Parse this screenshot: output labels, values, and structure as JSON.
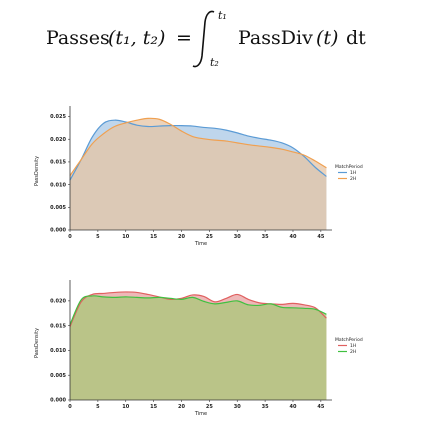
{
  "formula": {
    "lhs_name": "Passes",
    "lhs_args": "(t₁, t₂)",
    "equals": "=",
    "upper": "t₁",
    "lower": "t₂",
    "integrand": "PassDiv",
    "integrand_arg": "(t)",
    "differential": "dt"
  },
  "chart_data": [
    {
      "type": "area",
      "xlabel": "Time",
      "ylabel": "PassDensity",
      "xlim": [
        0,
        47
      ],
      "ylim": [
        0,
        0.026
      ],
      "xticks": [
        0,
        5,
        10,
        15,
        20,
        25,
        30,
        35,
        40,
        45
      ],
      "yticks": [
        0.0,
        0.005,
        0.01,
        0.015,
        0.02,
        0.025
      ],
      "ytick_labels": [
        "0.000",
        "0.005",
        "0.010",
        "0.015",
        "0.020",
        "0.025"
      ],
      "legend": {
        "title": "MatchPeriod",
        "position": "right"
      },
      "x": [
        0,
        2,
        4,
        6,
        8,
        10,
        12,
        14,
        16,
        18,
        20,
        22,
        24,
        26,
        28,
        30,
        32,
        34,
        36,
        38,
        40,
        42,
        44,
        46
      ],
      "series": [
        {
          "name": "1H",
          "color": "#5b9bd5",
          "fill": "#a9c8e6",
          "values": [
            0.011,
            0.0155,
            0.0205,
            0.0235,
            0.0242,
            0.0238,
            0.0231,
            0.0228,
            0.0229,
            0.023,
            0.023,
            0.0229,
            0.0226,
            0.0224,
            0.022,
            0.0214,
            0.0207,
            0.0202,
            0.0198,
            0.0192,
            0.0181,
            0.0162,
            0.0138,
            0.0118
          ]
        },
        {
          "name": "2H",
          "color": "#f0a050",
          "fill": "#e6c4a4",
          "values": [
            0.012,
            0.0155,
            0.019,
            0.0212,
            0.0228,
            0.0236,
            0.0242,
            0.0246,
            0.0244,
            0.0233,
            0.0218,
            0.0206,
            0.0201,
            0.0198,
            0.0196,
            0.0192,
            0.0188,
            0.0185,
            0.0182,
            0.0178,
            0.0172,
            0.0165,
            0.0152,
            0.0137
          ]
        }
      ]
    },
    {
      "type": "area",
      "xlabel": "Time",
      "ylabel": "PassDensity",
      "xlim": [
        0,
        47
      ],
      "ylim": [
        0,
        0.023
      ],
      "xticks": [
        0,
        5,
        10,
        15,
        20,
        25,
        30,
        35,
        40,
        45
      ],
      "yticks": [
        0.0,
        0.005,
        0.01,
        0.015,
        0.02
      ],
      "ytick_labels": [
        "0.000",
        "0.005",
        "0.010",
        "0.015",
        "0.020"
      ],
      "legend": {
        "title": "MatchPeriod",
        "position": "right"
      },
      "x": [
        0,
        2,
        4,
        6,
        8,
        10,
        12,
        14,
        16,
        18,
        20,
        22,
        24,
        26,
        28,
        30,
        32,
        34,
        36,
        38,
        40,
        42,
        44,
        46
      ],
      "series": [
        {
          "name": "1H",
          "color": "#e06060",
          "fill": "#e8a0a0",
          "values": [
            0.0148,
            0.0198,
            0.0213,
            0.0215,
            0.0217,
            0.0218,
            0.0217,
            0.0213,
            0.0208,
            0.0203,
            0.0205,
            0.0212,
            0.0209,
            0.0198,
            0.0205,
            0.0213,
            0.0203,
            0.0196,
            0.0194,
            0.0193,
            0.0195,
            0.0192,
            0.0186,
            0.0165
          ]
        },
        {
          "name": "2H",
          "color": "#40c040",
          "fill": "#a8c878",
          "values": [
            0.0152,
            0.0202,
            0.021,
            0.0208,
            0.0207,
            0.0208,
            0.0207,
            0.0206,
            0.0207,
            0.0205,
            0.0203,
            0.0207,
            0.0199,
            0.0194,
            0.0197,
            0.02,
            0.0192,
            0.0191,
            0.0194,
            0.0187,
            0.0186,
            0.0185,
            0.0183,
            0.0173
          ]
        }
      ]
    }
  ]
}
